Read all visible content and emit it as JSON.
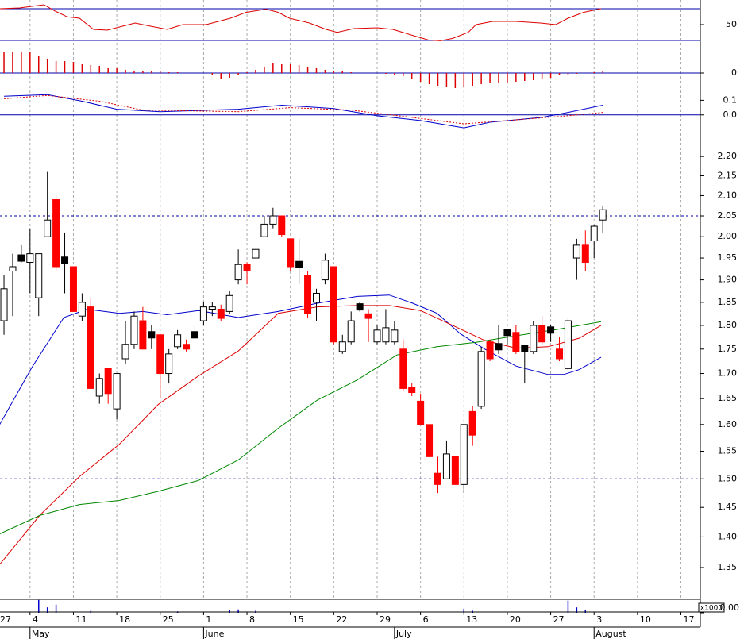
{
  "chart_data": [
    {
      "type": "candlestick",
      "log_scale": true,
      "xlim": [
        -0.46,
        80.24
      ],
      "xticks": [
        {
          "value": -2,
          "label": "27"
        },
        {
          "value": 3,
          "label": "4"
        },
        {
          "value": 8,
          "label": "11"
        },
        {
          "value": 13,
          "label": "18"
        },
        {
          "value": 18,
          "label": "25"
        },
        {
          "value": 23,
          "label": "1"
        },
        {
          "value": 28,
          "label": "8"
        },
        {
          "value": 33,
          "label": "15"
        },
        {
          "value": 38,
          "label": "22"
        },
        {
          "value": 43,
          "label": "29"
        },
        {
          "value": 48,
          "label": "6"
        },
        {
          "value": 53,
          "label": "13"
        },
        {
          "value": 58,
          "label": "20"
        },
        {
          "value": 63,
          "label": "27"
        },
        {
          "value": 68,
          "label": "3"
        },
        {
          "value": 73,
          "label": "10"
        },
        {
          "value": 78,
          "label": "17"
        }
      ],
      "months": [
        {
          "value": 3,
          "label": "May"
        },
        {
          "value": 23,
          "label": "June"
        },
        {
          "value": 45,
          "label": "July"
        },
        {
          "value": 68,
          "label": "August"
        }
      ],
      "ylim": [
        1.3,
        2.3
      ],
      "yticks": [
        {
          "value": 2.2,
          "label": "2.20"
        },
        2.15,
        {
          "value": 2.1,
          "label": "2.10"
        },
        2.05,
        {
          "value": 2,
          "label": "2.00"
        },
        1.95,
        {
          "value": 1.9,
          "label": "1.90"
        },
        1.85,
        {
          "value": 1.8,
          "label": "1.80"
        },
        1.75,
        {
          "value": 1.7,
          "label": "1.70"
        },
        1.65,
        {
          "value": 1.6,
          "label": "1.60"
        },
        1.55,
        {
          "value": 1.5,
          "label": "1.50"
        },
        1.45,
        {
          "value": 1.4,
          "label": "1.40"
        },
        1.35
      ],
      "hlines": [
        2.05,
        1.5
      ],
      "hline_color": "#0000aa",
      "hline_style": "dashed",
      "grid": true,
      "up_color": "#ffffff",
      "down_color": "#ff0000",
      "doji_color": "#000000",
      "x": [
        0,
        1,
        2,
        3,
        4,
        5,
        6,
        7,
        8,
        9,
        10,
        11,
        12,
        13,
        14,
        15,
        16,
        17,
        18,
        19,
        20,
        21,
        22,
        23,
        24,
        25,
        26,
        27,
        28,
        29,
        30,
        31,
        32,
        33,
        34,
        35,
        36,
        37,
        38,
        39,
        40,
        41,
        42,
        43,
        44,
        45,
        46,
        47,
        48,
        49,
        50,
        51,
        52,
        53,
        54,
        55,
        56,
        57,
        58,
        59,
        60,
        61,
        62,
        63,
        64,
        65,
        66,
        67,
        68,
        69
      ],
      "open": [
        1.81,
        1.92,
        1.95,
        1.94,
        1.86,
        2.0,
        2.09,
        1.945,
        1.93,
        1.82,
        1.84,
        1.655,
        1.71,
        1.63,
        1.73,
        1.76,
        1.81,
        1.78,
        1.78,
        1.7,
        1.755,
        1.76,
        1.78,
        1.81,
        1.835,
        1.835,
        1.83,
        1.9,
        1.935,
        1.95,
        2.0,
        2.03,
        2.05,
        1.995,
        1.935,
        1.91,
        1.85,
        1.9,
        1.93,
        1.745,
        1.765,
        1.84,
        1.825,
        1.765,
        1.765,
        1.765,
        1.75,
        1.673,
        1.645,
        1.6,
        1.51,
        1.5,
        1.54,
        1.49,
        1.625,
        1.635,
        1.765,
        1.755,
        1.785,
        1.785,
        1.752,
        1.745,
        1.8,
        1.79,
        1.75,
        1.71,
        1.95,
        1.98,
        1.99,
        2.04
      ],
      "high": [
        1.91,
        1.96,
        1.98,
        2.02,
        1.96,
        2.16,
        2.1,
        2.01,
        1.93,
        1.87,
        1.86,
        1.7,
        1.71,
        1.7,
        1.81,
        1.83,
        1.84,
        1.8,
        1.78,
        1.75,
        1.79,
        1.77,
        1.8,
        1.85,
        1.85,
        1.845,
        1.875,
        1.97,
        1.94,
        1.97,
        2.05,
        2.07,
        2.05,
        1.995,
        1.995,
        1.92,
        1.88,
        1.96,
        1.93,
        1.78,
        1.83,
        1.85,
        1.835,
        1.8,
        1.835,
        1.81,
        1.77,
        1.68,
        1.66,
        1.6,
        1.54,
        1.57,
        1.54,
        1.6,
        1.635,
        1.755,
        1.77,
        1.8,
        1.79,
        1.8,
        1.755,
        1.81,
        1.82,
        1.8,
        1.775,
        1.815,
        1.995,
        2.015,
        2.027,
        2.075
      ],
      "low": [
        1.78,
        1.82,
        1.94,
        1.87,
        1.82,
        2.0,
        1.92,
        1.87,
        1.83,
        1.81,
        1.67,
        1.64,
        1.64,
        1.61,
        1.72,
        1.75,
        1.75,
        1.75,
        1.65,
        1.68,
        1.75,
        1.745,
        1.77,
        1.8,
        1.82,
        1.81,
        1.825,
        1.89,
        1.89,
        1.95,
        2.0,
        2.02,
        2.0,
        1.92,
        1.89,
        1.815,
        1.81,
        1.89,
        1.76,
        1.74,
        1.76,
        1.83,
        1.765,
        1.76,
        1.76,
        1.76,
        1.665,
        1.655,
        1.598,
        1.54,
        1.475,
        1.5,
        1.49,
        1.475,
        1.56,
        1.63,
        1.725,
        1.74,
        1.76,
        1.74,
        1.68,
        1.74,
        1.76,
        1.765,
        1.725,
        1.705,
        1.9,
        1.92,
        1.95,
        2.01
      ],
      "close": [
        1.88,
        1.93,
        1.95,
        1.96,
        1.96,
        2.04,
        1.93,
        1.945,
        1.83,
        1.85,
        1.67,
        1.69,
        1.66,
        1.7,
        1.76,
        1.82,
        1.75,
        1.78,
        1.7,
        1.74,
        1.78,
        1.75,
        1.78,
        1.84,
        1.84,
        1.815,
        1.865,
        1.935,
        1.92,
        1.97,
        2.03,
        2.05,
        2.005,
        1.93,
        1.935,
        1.825,
        1.87,
        1.945,
        1.765,
        1.765,
        1.81,
        1.84,
        1.815,
        1.79,
        1.795,
        1.79,
        1.67,
        1.662,
        1.6,
        1.54,
        1.49,
        1.545,
        1.49,
        1.6,
        1.58,
        1.745,
        1.73,
        1.755,
        1.785,
        1.745,
        1.752,
        1.8,
        1.765,
        1.79,
        1.73,
        1.81,
        1.98,
        1.94,
        2.025,
        2.065
      ],
      "series": [
        {
          "color": "#0000cc",
          "x": [
            -0.5,
            3.2,
            6.9,
            9.6,
            13.3,
            16,
            18.8,
            22.4,
            27,
            31.6,
            36.1,
            40.7,
            44.4,
            47.1,
            49.9,
            52.6,
            55.4,
            59,
            62.7,
            64.5,
            66.3,
            68.8
          ],
          "values": [
            1.6,
            1.712,
            1.817,
            1.835,
            1.826,
            1.83,
            1.823,
            1.832,
            1.817,
            1.83,
            1.848,
            1.863,
            1.866,
            1.848,
            1.826,
            1.782,
            1.75,
            1.715,
            1.698,
            1.698,
            1.708,
            1.733
          ]
        },
        {
          "color": "#dd0000",
          "x": [
            -0.5,
            4.1,
            8.7,
            13.3,
            17.8,
            22.4,
            27,
            31.6,
            36.1,
            40.7,
            44.4,
            48,
            51.7,
            55.4,
            59,
            62.7,
            66.3,
            68.8
          ],
          "values": [
            1.355,
            1.436,
            1.504,
            1.563,
            1.639,
            1.695,
            1.746,
            1.826,
            1.84,
            1.843,
            1.843,
            1.832,
            1.8,
            1.768,
            1.752,
            1.755,
            1.773,
            1.8
          ]
        },
        {
          "color": "#008800",
          "x": [
            -0.5,
            4.1,
            8.7,
            13.3,
            17.8,
            22.4,
            27,
            31.6,
            36.1,
            40.7,
            45.3,
            49.9,
            54.4,
            59,
            63.6,
            68.8
          ],
          "values": [
            1.405,
            1.436,
            1.455,
            1.462,
            1.478,
            1.497,
            1.534,
            1.593,
            1.647,
            1.687,
            1.738,
            1.755,
            1.764,
            1.778,
            1.791,
            1.808
          ]
        }
      ]
    },
    {
      "type": "line",
      "ylim": [
        19,
        79
      ],
      "yticks": [
        50
      ],
      "hlines": [
        30,
        70
      ],
      "hline_color": "#0000aa",
      "hline_style": "solid",
      "series": [
        {
          "color": "#dd0000",
          "x": [
            -0.5,
            1.8,
            4.6,
            5.9,
            7.3,
            8.7,
            10.3,
            11.9,
            13.3,
            15.1,
            16.9,
            18.8,
            20.6,
            23.3,
            26.1,
            27.9,
            30.2,
            31.6,
            32.9,
            35.2,
            37.1,
            38.4,
            40.3,
            43,
            44.8,
            47.1,
            48.9,
            50.3,
            51.7,
            53.5,
            54.4,
            56.3,
            59,
            61.8,
            63.6,
            65,
            66.8,
            68.8
          ],
          "values": [
            70,
            71,
            75,
            67,
            59.7,
            58,
            44,
            43,
            47,
            52,
            48,
            44,
            50,
            50,
            58,
            65.5,
            69.4,
            65.5,
            58,
            52,
            44,
            40.3,
            45,
            46,
            44,
            36.4,
            30.6,
            29.6,
            32.6,
            40.3,
            50,
            54,
            54,
            52,
            50,
            58,
            65.5,
            70
          ]
        }
      ]
    },
    {
      "type": "bar",
      "ylim": [
        -0.03,
        0.03
      ],
      "yticks": [
        0
      ],
      "hlines": [
        0
      ],
      "hline_color": "#0000aa",
      "hline_style": "solid",
      "color": "#dd0000",
      "x": [
        0,
        1,
        2,
        3,
        4,
        5,
        6,
        7,
        8,
        9,
        10,
        11,
        12,
        13,
        14,
        15,
        16,
        17,
        18,
        19,
        20,
        21,
        22,
        23,
        24,
        25,
        26,
        27,
        28,
        29,
        30,
        31,
        32,
        33,
        34,
        35,
        36,
        37,
        38,
        39,
        40,
        41,
        42,
        43,
        44,
        45,
        46,
        47,
        48,
        49,
        50,
        51,
        52,
        53,
        54,
        55,
        56,
        57,
        58,
        59,
        60,
        61,
        62,
        63,
        64,
        65,
        66,
        67,
        68,
        69
      ],
      "values": [
        0.026,
        0.027,
        0.027,
        0.026,
        0.022,
        0.018,
        0.015,
        0.015,
        0.014,
        0.012,
        0.01,
        0.009,
        0.006,
        0.006,
        0.004,
        0.003,
        0.003,
        0.002,
        0.002,
        0.001,
        0.001,
        0,
        0,
        0,
        -0.003,
        -0.008,
        -0.006,
        -0.002,
        0.001,
        0.004,
        0.008,
        0.013,
        0.012,
        0.011,
        0.01,
        0.008,
        0.006,
        0.004,
        0.003,
        0.002,
        0.001,
        0,
        0,
        0,
        -0.001,
        -0.002,
        -0.004,
        -0.007,
        -0.011,
        -0.014,
        -0.016,
        -0.018,
        -0.019,
        -0.017,
        -0.016,
        -0.014,
        -0.013,
        -0.013,
        -0.012,
        -0.011,
        -0.01,
        -0.009,
        -0.008,
        -0.006,
        -0.003,
        -0.002,
        -0.001,
        0,
        0.001,
        0.002
      ]
    },
    {
      "type": "line",
      "ylim": [
        -0.11,
        0.2
      ],
      "yticks": [
        0.1,
        {
          "value": 0,
          "label": "0.0"
        }
      ],
      "hlines": [
        0
      ],
      "hline_color": "#0000aa",
      "hline_style": "solid",
      "series": [
        {
          "color": "#0000cc",
          "x": [
            0,
            5,
            9,
            13,
            18,
            27,
            32,
            38,
            43,
            48,
            53,
            56,
            62,
            65,
            69
          ],
          "values": [
            0.128,
            0.139,
            0.094,
            0.039,
            0.022,
            0.039,
            0.067,
            0.044,
            -0.006,
            -0.039,
            -0.089,
            -0.05,
            -0.017,
            0.017,
            0.067
          ]
        },
        {
          "color": "#dd0000",
          "style": "dotted",
          "x": [
            0,
            5,
            11,
            16,
            27,
            33,
            40,
            47,
            53,
            58,
            65,
            69
          ],
          "values": [
            0.111,
            0.133,
            0.094,
            0.033,
            0.022,
            0.05,
            0.033,
            -0.017,
            -0.061,
            -0.039,
            -0.006,
            0.017
          ]
        }
      ]
    },
    {
      "type": "bar",
      "ylim": [
        0,
        100
      ],
      "yticks": [
        {
          "value": 0,
          "label": "0.00"
        }
      ],
      "unit_label": "x1000",
      "color": "#0000cc",
      "x": [
        0,
        1,
        2,
        3,
        4,
        5,
        6,
        7,
        8,
        9,
        10,
        11,
        12,
        13,
        14,
        15,
        16,
        17,
        18,
        19,
        20,
        21,
        22,
        23,
        24,
        25,
        26,
        27,
        28,
        29,
        30,
        31,
        32,
        33,
        34,
        35,
        36,
        37,
        38,
        39,
        40,
        41,
        42,
        43,
        44,
        45,
        46,
        47,
        48,
        49,
        50,
        51,
        52,
        53,
        54,
        55,
        56,
        57,
        58,
        59,
        60,
        61,
        62,
        63,
        64,
        65,
        66,
        67,
        68,
        69
      ],
      "values": [
        0,
        0,
        0,
        0,
        95,
        40,
        60,
        0,
        0,
        0,
        15,
        0,
        0,
        0,
        0,
        0,
        0,
        0,
        0,
        0,
        10,
        0,
        0,
        0,
        0,
        0,
        20,
        25,
        0,
        15,
        0,
        0,
        0,
        0,
        0,
        0,
        0,
        0,
        0,
        0,
        0,
        0,
        0,
        0,
        0,
        0,
        0,
        0,
        0,
        0,
        0,
        0,
        0,
        30,
        15,
        0,
        0,
        0,
        0,
        0,
        0,
        0,
        0,
        0,
        0,
        90,
        40,
        20,
        0,
        0
      ]
    }
  ]
}
